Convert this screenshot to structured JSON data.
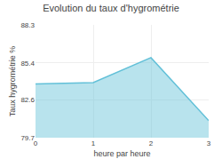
{
  "chart_data": {
    "type": "area",
    "title": "Evolution du taux d'hygrométrie",
    "x_label": "heure par heure",
    "y_label": "Taux hygrométrie %",
    "x": [
      0,
      1,
      2,
      3
    ],
    "values": [
      83.8,
      83.9,
      85.8,
      81.0
    ],
    "color": "#62c0d8",
    "xlim": [
      0,
      3
    ],
    "xticks": [
      0,
      1,
      2,
      3
    ],
    "ylim": [
      79.7,
      88.3
    ],
    "yticks": [
      79.7,
      82.6,
      85.4,
      88.3
    ],
    "grid": true
  }
}
